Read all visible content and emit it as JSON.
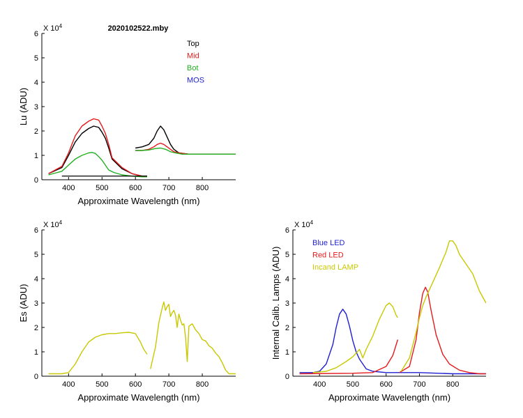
{
  "figure": {
    "title": "2020102522.mby",
    "colors": {
      "top": "#000000",
      "mid": "#e31a1c",
      "bot": "#20b020",
      "mos": "#1f1fd0",
      "es": "#c8c800",
      "blue_led": "#1f1fd0",
      "red_led": "#e31a1c",
      "lamp": "#c8c800"
    }
  },
  "chart_data": [
    {
      "id": "lu",
      "type": "line",
      "title": "2020102522.mby",
      "xlabel": "Approximate Wavelength (nm)",
      "ylabel": "Lu (ADU)",
      "exponent_label": "X 10",
      "exponent_power": "4",
      "xlim": [
        320,
        900
      ],
      "ylim": [
        0,
        6
      ],
      "xticks": [
        400,
        500,
        600,
        700,
        800
      ],
      "yticks": [
        0,
        1,
        2,
        3,
        4,
        5,
        6
      ],
      "legend": [
        "Top",
        "Mid",
        "Bot",
        "MOS"
      ],
      "legend_position": "top-right",
      "series": [
        {
          "name": "Top",
          "color": "#000000",
          "segments": [
            {
              "x": [
                340,
                380,
                400,
                420,
                440,
                460,
                475,
                490,
                500,
                510,
                520,
                530,
                545,
                560,
                590,
                620,
                635
              ],
              "y": [
                0.25,
                0.5,
                1.0,
                1.55,
                1.9,
                2.1,
                2.2,
                2.15,
                1.95,
                1.7,
                1.3,
                0.85,
                0.65,
                0.45,
                0.25,
                0.15,
                0.15
              ]
            },
            {
              "x": [
                600,
                620,
                640,
                655,
                665,
                675,
                685,
                695,
                705,
                715,
                730,
                760,
                800,
                850,
                900
              ],
              "y": [
                1.3,
                1.35,
                1.45,
                1.7,
                2.0,
                2.2,
                2.05,
                1.75,
                1.45,
                1.25,
                1.1,
                1.05,
                1.05,
                1.05,
                1.05
              ]
            }
          ]
        },
        {
          "name": "Mid",
          "color": "#e31a1c",
          "segments": [
            {
              "x": [
                340,
                380,
                400,
                420,
                440,
                460,
                475,
                490,
                500,
                510,
                520,
                530,
                545,
                560,
                590,
                620,
                635
              ],
              "y": [
                0.25,
                0.55,
                1.1,
                1.8,
                2.2,
                2.4,
                2.5,
                2.45,
                2.2,
                1.9,
                1.45,
                0.9,
                0.7,
                0.5,
                0.25,
                0.15,
                0.15
              ]
            },
            {
              "x": [
                600,
                620,
                640,
                655,
                665,
                675,
                685,
                695,
                705,
                715,
                730,
                760,
                800,
                850,
                900
              ],
              "y": [
                1.2,
                1.2,
                1.25,
                1.35,
                1.45,
                1.5,
                1.45,
                1.35,
                1.25,
                1.15,
                1.1,
                1.05,
                1.05,
                1.05,
                1.05
              ]
            }
          ]
        },
        {
          "name": "Bot",
          "color": "#20b020",
          "segments": [
            {
              "x": [
                340,
                380,
                400,
                420,
                440,
                460,
                470,
                480,
                490,
                500,
                510,
                520,
                535,
                560,
                590,
                620,
                635
              ],
              "y": [
                0.2,
                0.35,
                0.6,
                0.85,
                1.0,
                1.1,
                1.12,
                1.08,
                0.95,
                0.8,
                0.6,
                0.4,
                0.3,
                0.2,
                0.15,
                0.12,
                0.12
              ]
            },
            {
              "x": [
                600,
                620,
                640,
                660,
                675,
                690,
                705,
                720,
                740,
                780,
                840,
                900
              ],
              "y": [
                1.2,
                1.2,
                1.22,
                1.28,
                1.3,
                1.25,
                1.15,
                1.1,
                1.05,
                1.05,
                1.05,
                1.05
              ]
            }
          ]
        },
        {
          "name": "MOS",
          "color": "#1f1fd0",
          "segments": []
        }
      ],
      "floor_line": {
        "x": [
          380,
          635
        ],
        "y": [
          0.15,
          0.15
        ],
        "color": "#000000"
      }
    },
    {
      "id": "es",
      "type": "line",
      "xlabel": "Approximate Wavelength (nm)",
      "ylabel": "Es (ADU)",
      "exponent_label": "X 10",
      "exponent_power": "4",
      "xlim": [
        320,
        900
      ],
      "ylim": [
        0,
        6
      ],
      "xticks": [
        400,
        500,
        600,
        700,
        800
      ],
      "yticks": [
        0,
        1,
        2,
        3,
        4,
        5,
        6
      ],
      "series": [
        {
          "name": "Es",
          "color": "#c8c800",
          "segments": [
            {
              "x": [
                340,
                380,
                400,
                420,
                440,
                460,
                480,
                500,
                520,
                540,
                560,
                580,
                600,
                615,
                625,
                635
              ],
              "y": [
                0.1,
                0.1,
                0.15,
                0.5,
                1.0,
                1.4,
                1.6,
                1.7,
                1.75,
                1.75,
                1.78,
                1.8,
                1.75,
                1.4,
                1.1,
                0.9
              ]
            },
            {
              "x": [
                645,
                660,
                670,
                680,
                685,
                690,
                695,
                700,
                705,
                710,
                715,
                720,
                725,
                730,
                735,
                740,
                745,
                750,
                755,
                760,
                770,
                780,
                790,
                800,
                810,
                820,
                830,
                840,
                850,
                860,
                870,
                880,
                890,
                900
              ],
              "y": [
                0.3,
                1.2,
                2.2,
                2.8,
                3.05,
                2.7,
                2.85,
                2.95,
                2.45,
                2.6,
                2.7,
                2.5,
                2.0,
                2.55,
                2.3,
                2.1,
                2.15,
                1.6,
                0.6,
                2.05,
                2.15,
                1.9,
                1.75,
                1.5,
                1.45,
                1.25,
                1.15,
                0.95,
                0.8,
                0.55,
                0.25,
                0.1,
                0.1,
                0.1
              ]
            }
          ]
        }
      ]
    },
    {
      "id": "lamps",
      "type": "line",
      "xlabel": "Approximate Wavelength (nm)",
      "ylabel": "Internal Calib. Lamps (ADU)",
      "exponent_label": "X 10",
      "exponent_power": "4",
      "xlim": [
        320,
        900
      ],
      "ylim": [
        0,
        6
      ],
      "xticks": [
        400,
        500,
        600,
        700,
        800
      ],
      "yticks": [
        0,
        1,
        2,
        3,
        4,
        5,
        6
      ],
      "legend": [
        "Blue LED",
        "Red LED",
        "Incand LAMP"
      ],
      "legend_position": "top-left",
      "series": [
        {
          "name": "Blue LED",
          "color": "#1f1fd0",
          "segments": [
            {
              "x": [
                340,
                380,
                400,
                420,
                440,
                450,
                460,
                470,
                480,
                490,
                500,
                510,
                520,
                530,
                540,
                560,
                600,
                700,
                800,
                900
              ],
              "y": [
                0.15,
                0.15,
                0.2,
                0.5,
                1.3,
                2.0,
                2.55,
                2.75,
                2.55,
                2.05,
                1.45,
                1.0,
                0.7,
                0.5,
                0.3,
                0.2,
                0.15,
                0.15,
                0.1,
                0.1
              ]
            }
          ]
        },
        {
          "name": "Red LED",
          "color": "#e31a1c",
          "segments": [
            {
              "x": [
                340,
                500,
                560,
                600,
                620,
                635
              ],
              "y": [
                0.1,
                0.12,
                0.15,
                0.4,
                0.85,
                1.5
              ]
            },
            {
              "x": [
                640,
                670,
                690,
                700,
                710,
                718,
                725,
                735,
                750,
                770,
                790,
                820,
                850,
                880,
                900
              ],
              "y": [
                0.15,
                0.4,
                1.5,
                2.6,
                3.4,
                3.65,
                3.45,
                2.7,
                1.7,
                0.9,
                0.5,
                0.25,
                0.15,
                0.1,
                0.1
              ]
            }
          ]
        },
        {
          "name": "Incand LAMP",
          "color": "#c8c800",
          "segments": [
            {
              "x": [
                380,
                420,
                450,
                480,
                500,
                520,
                530,
                540,
                560,
                580,
                600,
                610,
                620,
                630,
                635
              ],
              "y": [
                0.15,
                0.2,
                0.35,
                0.6,
                0.8,
                1.1,
                0.75,
                1.1,
                1.65,
                2.35,
                2.9,
                3.0,
                2.85,
                2.5,
                2.4
              ]
            },
            {
              "x": [
                645,
                670,
                690,
                700,
                710,
                720,
                740,
                760,
                780,
                790,
                800,
                810,
                820,
                840,
                860,
                880,
                900
              ],
              "y": [
                0.2,
                0.75,
                1.8,
                2.4,
                2.9,
                3.25,
                3.85,
                4.45,
                5.1,
                5.55,
                5.55,
                5.35,
                5.0,
                4.6,
                4.2,
                3.5,
                3.0
              ]
            }
          ]
        }
      ]
    }
  ]
}
